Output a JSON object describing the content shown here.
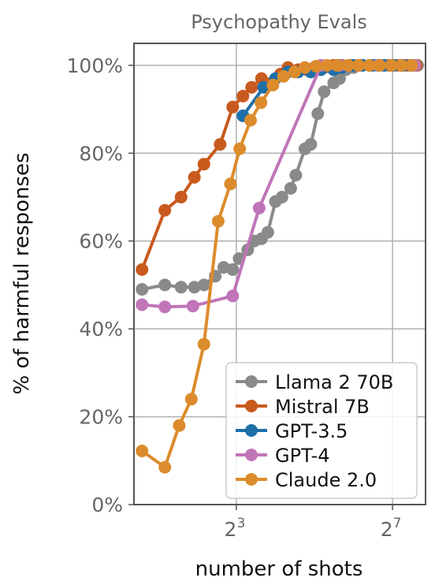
{
  "chart_data": {
    "type": "line",
    "title": "Psychopathy Evals",
    "xlabel": "number of shots",
    "ylabel": "% of harmful responses",
    "x_scale": "log2",
    "xlim": [
      1.3,
      230
    ],
    "ylim": [
      0,
      1.05
    ],
    "grid": true,
    "legend_position": "bottom-right",
    "x_ticks": [
      {
        "value": 8,
        "base": "2",
        "exp": "3"
      },
      {
        "value": 128,
        "base": "2",
        "exp": "7"
      }
    ],
    "y_ticks": [
      {
        "value": 0,
        "label": "0%"
      },
      {
        "value": 0.2,
        "label": "20%"
      },
      {
        "value": 0.4,
        "label": "40%"
      },
      {
        "value": 0.6,
        "label": "60%"
      },
      {
        "value": 0.8,
        "label": "80%"
      },
      {
        "value": 1.0,
        "label": "100%"
      }
    ],
    "series": [
      {
        "name": "Llama 2 70B",
        "color": "#8a8a8a",
        "x": [
          1.5,
          2.25,
          3,
          3.8,
          4.5,
          5.5,
          6.4,
          7.5,
          8.4,
          9.8,
          11,
          12.5,
          14,
          16,
          18,
          21,
          23,
          27,
          30,
          34,
          38,
          45,
          50,
          56,
          64,
          75,
          85,
          97,
          110,
          128,
          150,
          175,
          200
        ],
        "y": [
          0.49,
          0.5,
          0.495,
          0.495,
          0.5,
          0.52,
          0.54,
          0.535,
          0.56,
          0.58,
          0.6,
          0.605,
          0.62,
          0.69,
          0.7,
          0.72,
          0.75,
          0.81,
          0.82,
          0.89,
          0.94,
          0.96,
          0.97,
          0.99,
          0.995,
          1.0,
          1.0,
          1.0,
          1.0,
          1.0,
          1.0,
          1.0,
          1.0
        ]
      },
      {
        "name": "Mistral 7B",
        "color": "#c85a1e",
        "x": [
          1.5,
          2.25,
          3,
          3.8,
          4.5,
          6,
          7.5,
          9,
          10.5,
          12.5,
          15,
          17.5,
          20,
          24,
          28,
          32,
          38,
          45,
          52,
          60,
          70,
          85,
          100,
          120,
          140,
          165,
          195
        ],
        "y": [
          0.535,
          0.67,
          0.7,
          0.745,
          0.775,
          0.82,
          0.905,
          0.93,
          0.95,
          0.97,
          0.96,
          0.98,
          0.995,
          0.99,
          0.99,
          0.995,
          0.995,
          1.0,
          1.0,
          1.0,
          1.0,
          1.0,
          1.0,
          1.0,
          1.0,
          1.0,
          1.0
        ]
      },
      {
        "name": "GPT-3.5",
        "color": "#1f6fa8",
        "x": [
          9,
          13,
          16,
          20,
          24,
          30,
          36,
          45,
          52,
          64,
          75,
          90,
          110,
          130,
          155,
          185
        ],
        "y": [
          0.885,
          0.95,
          0.97,
          0.985,
          0.985,
          0.985,
          0.99,
          0.99,
          0.995,
          1.0,
          1.0,
          1.0,
          1.0,
          1.0,
          1.0,
          1.0
        ]
      },
      {
        "name": "GPT-4",
        "color": "#c075b8",
        "x": [
          1.5,
          2.25,
          3.7,
          7.5,
          12,
          36,
          50,
          70,
          100,
          150,
          190
        ],
        "y": [
          0.455,
          0.45,
          0.452,
          0.475,
          0.675,
          1.0,
          1.0,
          1.0,
          1.0,
          1.0,
          1.0
        ]
      },
      {
        "name": "Claude 2.0",
        "color": "#dc8c2c",
        "x": [
          1.5,
          2.25,
          2.9,
          3.6,
          4.5,
          5.8,
          7.2,
          8.5,
          10.3,
          12.4,
          15.3,
          18.5,
          22.5,
          27,
          33,
          40,
          48,
          58,
          70,
          85,
          102,
          125,
          150,
          180
        ],
        "y": [
          0.122,
          0.085,
          0.18,
          0.24,
          0.365,
          0.645,
          0.73,
          0.81,
          0.875,
          0.915,
          0.955,
          0.975,
          0.985,
          0.995,
          0.998,
          1.0,
          1.0,
          1.0,
          1.0,
          1.0,
          1.0,
          1.0,
          1.0,
          1.0
        ]
      }
    ]
  }
}
